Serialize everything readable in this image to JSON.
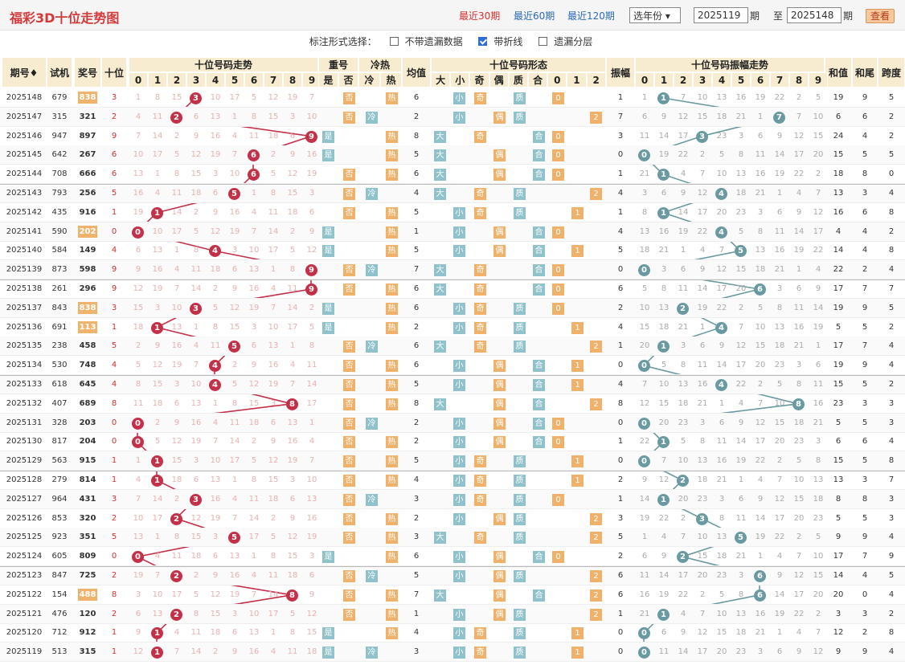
{
  "header": {
    "title": "福彩3D十位走势图",
    "nav": [
      "最近30期",
      "最近60期",
      "最近120期"
    ],
    "year_select": "选年份",
    "from_label": "期",
    "to_label": "至",
    "to_suffix": "期",
    "from_value": "2025119",
    "to_value": "2025148",
    "query_button": "查看"
  },
  "options": {
    "label": "标注形式选择：",
    "items": [
      {
        "label": "不带遗漏数据",
        "checked": false
      },
      {
        "label": "带折线",
        "checked": true
      },
      {
        "label": "遗漏分层",
        "checked": false
      }
    ]
  },
  "columns": {
    "issue": "期号",
    "trial": "试机",
    "prize": "奖号",
    "tens": "十位",
    "trend": "十位号码走势",
    "repeat": "重号",
    "hot": "冷热",
    "avg": "均值",
    "form": "十位号码形态",
    "amp": "振幅",
    "amp_trend": "十位号码振幅走势",
    "sum": "和值",
    "tail": "和尾",
    "span": "跨度",
    "sub_repeat": [
      "是",
      "否"
    ],
    "sub_hot": [
      "冷",
      "热"
    ],
    "sub_form": [
      "大",
      "小",
      "奇",
      "偶",
      "质",
      "合",
      "0",
      "1",
      "2"
    ],
    "digits": [
      "0",
      "1",
      "2",
      "3",
      "4",
      "5",
      "6",
      "7",
      "8",
      "9"
    ]
  },
  "rows": [
    {
      "i": "2025148",
      "t": "679",
      "p": "838",
      "hl": true
    },
    {
      "i": "2025147",
      "t": "315",
      "p": "321",
      "hl": false
    },
    {
      "i": "2025146",
      "t": "947",
      "p": "897",
      "hl": false
    },
    {
      "i": "2025145",
      "t": "642",
      "p": "267",
      "hl": false
    },
    {
      "i": "2025144",
      "t": "708",
      "p": "666",
      "hl": false
    },
    {
      "i": "2025143",
      "t": "793",
      "p": "256",
      "hl": false
    },
    {
      "i": "2025142",
      "t": "435",
      "p": "916",
      "hl": false
    },
    {
      "i": "2025141",
      "t": "590",
      "p": "202",
      "hl": true
    },
    {
      "i": "2025140",
      "t": "584",
      "p": "149",
      "hl": false
    },
    {
      "i": "2025139",
      "t": "873",
      "p": "598",
      "hl": false
    },
    {
      "i": "2025138",
      "t": "261",
      "p": "296",
      "hl": false
    },
    {
      "i": "2025137",
      "t": "843",
      "p": "838",
      "hl": true
    },
    {
      "i": "2025136",
      "t": "691",
      "p": "113",
      "hl": true
    },
    {
      "i": "2025135",
      "t": "238",
      "p": "458",
      "hl": false
    },
    {
      "i": "2025134",
      "t": "530",
      "p": "748",
      "hl": false
    },
    {
      "i": "2025133",
      "t": "618",
      "p": "645",
      "hl": false
    },
    {
      "i": "2025132",
      "t": "407",
      "p": "689",
      "hl": false
    },
    {
      "i": "2025131",
      "t": "328",
      "p": "203",
      "hl": false
    },
    {
      "i": "2025130",
      "t": "817",
      "p": "204",
      "hl": false
    },
    {
      "i": "2025129",
      "t": "563",
      "p": "915",
      "hl": false
    },
    {
      "i": "2025128",
      "t": "279",
      "p": "814",
      "hl": false
    },
    {
      "i": "2025127",
      "t": "964",
      "p": "431",
      "hl": false
    },
    {
      "i": "2025126",
      "t": "853",
      "p": "320",
      "hl": false
    },
    {
      "i": "2025125",
      "t": "923",
      "p": "351",
      "hl": false
    },
    {
      "i": "2025124",
      "t": "605",
      "p": "809",
      "hl": false
    },
    {
      "i": "2025123",
      "t": "847",
      "p": "725",
      "hl": false
    },
    {
      "i": "2025122",
      "t": "154",
      "p": "488",
      "hl": true
    },
    {
      "i": "2025121",
      "t": "476",
      "p": "120",
      "hl": false
    },
    {
      "i": "2025120",
      "t": "712",
      "p": "912",
      "hl": false
    },
    {
      "i": "2025119",
      "t": "513",
      "p": "315",
      "hl": false
    }
  ],
  "colors": {
    "red_ball": "#c43048",
    "teal_ball": "#6a9aa1",
    "accent": "#d6312f"
  }
}
